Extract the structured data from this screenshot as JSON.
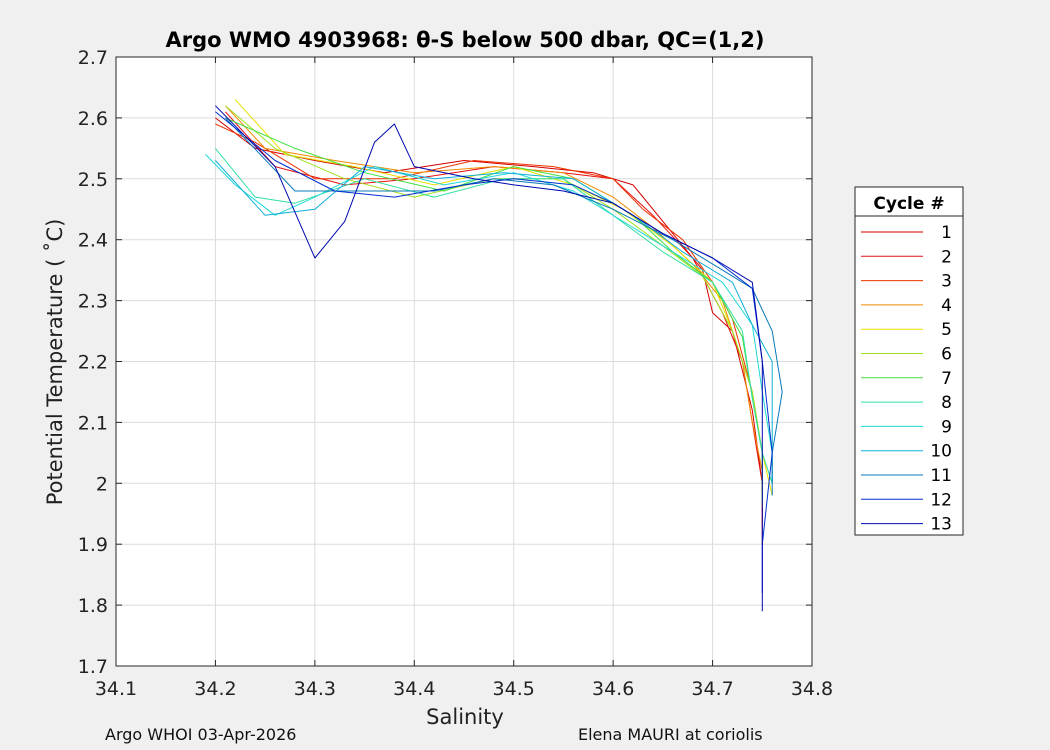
{
  "chart_data": {
    "type": "line",
    "title": "Argo WMO 4903968: θ-S below 500 dbar,  QC=(1,2)",
    "xlabel": "Salinity",
    "ylabel": "Potential Temperature ( ˚C)",
    "xlim": [
      34.1,
      34.8
    ],
    "ylim": [
      1.7,
      2.7
    ],
    "xticks": [
      "34.1",
      "34.2",
      "34.3",
      "34.4",
      "34.5",
      "34.6",
      "34.7",
      "34.8"
    ],
    "yticks": [
      "1.7",
      "1.8",
      "1.9",
      "2",
      "2.1",
      "2.2",
      "2.3",
      "2.4",
      "2.5",
      "2.6",
      "2.7"
    ],
    "grid": true,
    "legend": {
      "title": "Cycle #",
      "placement": "right"
    },
    "series": [
      {
        "name": "1",
        "color": "#d40000",
        "points": [
          [
            34.2,
            2.6
          ],
          [
            34.24,
            2.55
          ],
          [
            34.3,
            2.53
          ],
          [
            34.37,
            2.51
          ],
          [
            34.45,
            2.53
          ],
          [
            34.52,
            2.52
          ],
          [
            34.58,
            2.51
          ],
          [
            34.62,
            2.49
          ],
          [
            34.66,
            2.41
          ],
          [
            34.69,
            2.35
          ],
          [
            34.7,
            2.28
          ],
          [
            34.72,
            2.25
          ],
          [
            34.74,
            2.12
          ],
          [
            34.75,
            2.0
          ],
          [
            34.75,
            1.9
          ]
        ]
      },
      {
        "name": "2",
        "color": "#e81010",
        "points": [
          [
            34.21,
            2.61
          ],
          [
            34.26,
            2.52
          ],
          [
            34.33,
            2.49
          ],
          [
            34.4,
            2.5
          ],
          [
            34.48,
            2.52
          ],
          [
            34.55,
            2.51
          ],
          [
            34.6,
            2.5
          ],
          [
            34.64,
            2.44
          ],
          [
            34.68,
            2.37
          ],
          [
            34.71,
            2.28
          ],
          [
            34.73,
            2.2
          ],
          [
            34.74,
            2.1
          ],
          [
            34.75,
            2.0
          ],
          [
            34.75,
            1.93
          ]
        ]
      },
      {
        "name": "3",
        "color": "#ee3300",
        "points": [
          [
            34.2,
            2.59
          ],
          [
            34.24,
            2.56
          ],
          [
            34.3,
            2.5
          ],
          [
            34.38,
            2.5
          ],
          [
            34.46,
            2.53
          ],
          [
            34.54,
            2.52
          ],
          [
            34.6,
            2.5
          ],
          [
            34.63,
            2.45
          ],
          [
            34.67,
            2.4
          ],
          [
            34.7,
            2.33
          ],
          [
            34.72,
            2.27
          ],
          [
            34.74,
            2.15
          ],
          [
            34.75,
            2.05
          ]
        ]
      },
      {
        "name": "4",
        "color": "#f08a00",
        "points": [
          [
            34.21,
            2.62
          ],
          [
            34.25,
            2.55
          ],
          [
            34.32,
            2.53
          ],
          [
            34.4,
            2.51
          ],
          [
            34.48,
            2.52
          ],
          [
            34.55,
            2.51
          ],
          [
            34.6,
            2.47
          ],
          [
            34.64,
            2.42
          ],
          [
            34.68,
            2.36
          ],
          [
            34.71,
            2.3
          ],
          [
            34.73,
            2.2
          ],
          [
            34.74,
            2.1
          ],
          [
            34.75,
            2.02
          ]
        ]
      },
      {
        "name": "5",
        "color": "#e8e000",
        "points": [
          [
            34.22,
            2.63
          ],
          [
            34.27,
            2.54
          ],
          [
            34.34,
            2.52
          ],
          [
            34.42,
            2.49
          ],
          [
            34.5,
            2.52
          ],
          [
            34.56,
            2.49
          ],
          [
            34.61,
            2.45
          ],
          [
            34.66,
            2.39
          ],
          [
            34.7,
            2.33
          ],
          [
            34.72,
            2.25
          ],
          [
            34.74,
            2.15
          ],
          [
            34.75,
            2.05
          ],
          [
            34.76,
            1.98
          ]
        ]
      },
      {
        "name": "6",
        "color": "#a0e020",
        "points": [
          [
            34.21,
            2.62
          ],
          [
            34.26,
            2.55
          ],
          [
            34.33,
            2.5
          ],
          [
            34.4,
            2.47
          ],
          [
            34.48,
            2.5
          ],
          [
            34.55,
            2.5
          ],
          [
            34.6,
            2.45
          ],
          [
            34.65,
            2.39
          ],
          [
            34.69,
            2.34
          ],
          [
            34.72,
            2.25
          ],
          [
            34.74,
            2.15
          ],
          [
            34.75,
            2.05
          ],
          [
            34.75,
            1.96
          ]
        ]
      },
      {
        "name": "7",
        "color": "#40e040",
        "points": [
          [
            34.21,
            2.6
          ],
          [
            34.28,
            2.55
          ],
          [
            34.35,
            2.51
          ],
          [
            34.43,
            2.48
          ],
          [
            34.5,
            2.52
          ],
          [
            34.56,
            2.5
          ],
          [
            34.62,
            2.44
          ],
          [
            34.66,
            2.38
          ],
          [
            34.7,
            2.33
          ],
          [
            34.73,
            2.24
          ],
          [
            34.74,
            2.14
          ],
          [
            34.75,
            2.05
          ],
          [
            34.75,
            1.97
          ]
        ]
      },
      {
        "name": "8",
        "color": "#30e0a0",
        "points": [
          [
            34.2,
            2.55
          ],
          [
            34.24,
            2.47
          ],
          [
            34.28,
            2.46
          ],
          [
            34.35,
            2.5
          ],
          [
            34.42,
            2.47
          ],
          [
            34.49,
            2.5
          ],
          [
            34.55,
            2.5
          ],
          [
            34.6,
            2.44
          ],
          [
            34.65,
            2.38
          ],
          [
            34.7,
            2.33
          ],
          [
            34.73,
            2.25
          ],
          [
            34.74,
            2.14
          ],
          [
            34.75,
            2.05
          ],
          [
            34.76,
            2.0
          ]
        ]
      },
      {
        "name": "9",
        "color": "#20d8d8",
        "points": [
          [
            34.19,
            2.54
          ],
          [
            34.22,
            2.49
          ],
          [
            34.26,
            2.44
          ],
          [
            34.3,
            2.47
          ],
          [
            34.36,
            2.52
          ],
          [
            34.43,
            2.49
          ],
          [
            34.5,
            2.51
          ],
          [
            34.56,
            2.48
          ],
          [
            34.62,
            2.42
          ],
          [
            34.67,
            2.37
          ],
          [
            34.71,
            2.33
          ],
          [
            34.74,
            2.26
          ],
          [
            34.75,
            2.15
          ],
          [
            34.76,
            2.05
          ],
          [
            34.76,
            2.0
          ]
        ]
      },
      {
        "name": "10",
        "color": "#10b0d8",
        "points": [
          [
            34.2,
            2.53
          ],
          [
            34.25,
            2.44
          ],
          [
            34.3,
            2.45
          ],
          [
            34.35,
            2.52
          ],
          [
            34.42,
            2.5
          ],
          [
            34.49,
            2.51
          ],
          [
            34.56,
            2.5
          ],
          [
            34.62,
            2.44
          ],
          [
            34.67,
            2.38
          ],
          [
            34.72,
            2.33
          ],
          [
            34.74,
            2.26
          ],
          [
            34.76,
            2.2
          ],
          [
            34.76,
            2.1
          ],
          [
            34.76,
            2.0
          ]
        ]
      },
      {
        "name": "11",
        "color": "#0878b8",
        "points": [
          [
            34.21,
            2.6
          ],
          [
            34.28,
            2.48
          ],
          [
            34.35,
            2.48
          ],
          [
            34.42,
            2.48
          ],
          [
            34.48,
            2.5
          ],
          [
            34.54,
            2.49
          ],
          [
            34.6,
            2.45
          ],
          [
            34.66,
            2.4
          ],
          [
            34.71,
            2.35
          ],
          [
            34.74,
            2.32
          ],
          [
            34.76,
            2.25
          ],
          [
            34.77,
            2.15
          ],
          [
            34.76,
            2.05
          ],
          [
            34.76,
            1.98
          ]
        ]
      },
      {
        "name": "12",
        "color": "#0030d0",
        "points": [
          [
            34.2,
            2.61
          ],
          [
            34.26,
            2.53
          ],
          [
            34.32,
            2.48
          ],
          [
            34.38,
            2.47
          ],
          [
            34.45,
            2.49
          ],
          [
            34.5,
            2.5
          ],
          [
            34.56,
            2.49
          ],
          [
            34.6,
            2.46
          ],
          [
            34.65,
            2.41
          ],
          [
            34.7,
            2.37
          ],
          [
            34.74,
            2.32
          ],
          [
            34.75,
            2.2
          ],
          [
            34.76,
            2.05
          ],
          [
            34.75,
            1.9
          ],
          [
            34.75,
            1.82
          ]
        ]
      },
      {
        "name": "13",
        "color": "#0008b0",
        "points": [
          [
            34.2,
            2.62
          ],
          [
            34.26,
            2.52
          ],
          [
            34.3,
            2.37
          ],
          [
            34.33,
            2.43
          ],
          [
            34.36,
            2.56
          ],
          [
            34.38,
            2.59
          ],
          [
            34.4,
            2.52
          ],
          [
            34.46,
            2.5
          ],
          [
            34.5,
            2.49
          ],
          [
            34.55,
            2.48
          ],
          [
            34.6,
            2.46
          ],
          [
            34.65,
            2.41
          ],
          [
            34.7,
            2.37
          ],
          [
            34.74,
            2.33
          ],
          [
            34.75,
            2.2
          ],
          [
            34.75,
            2.0
          ],
          [
            34.75,
            1.86
          ],
          [
            34.75,
            1.79
          ]
        ]
      }
    ]
  },
  "footer": {
    "left": "Argo WHOI 03-Apr-2026",
    "right": "Elena MAURI at coriolis"
  }
}
